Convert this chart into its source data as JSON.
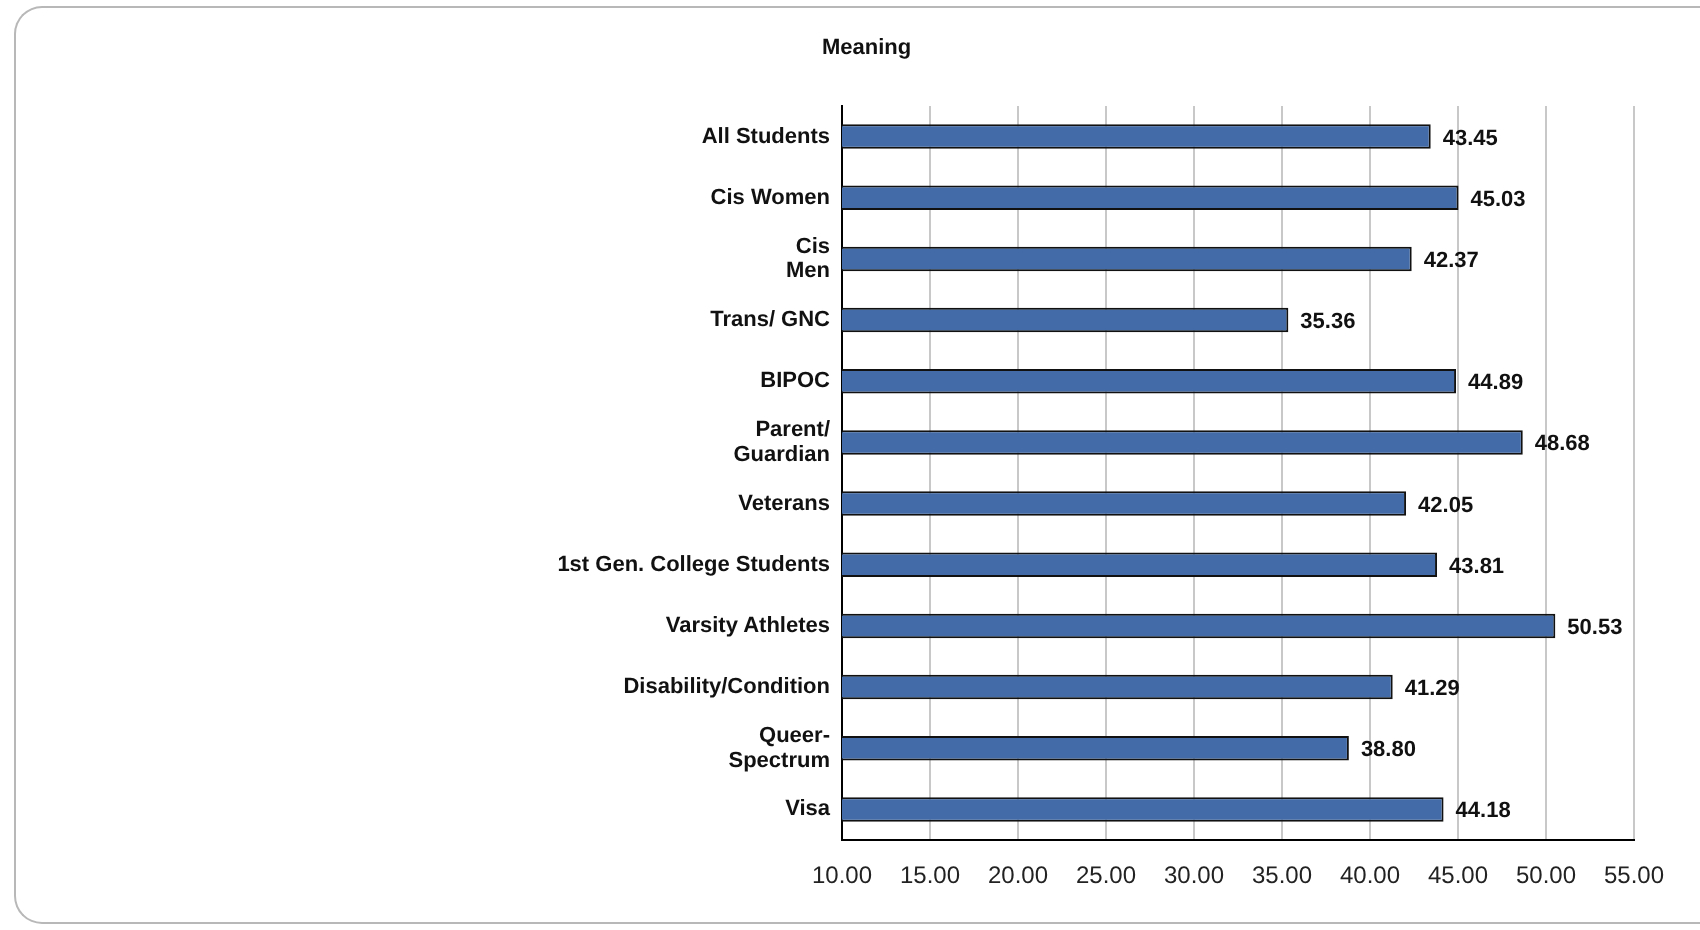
{
  "chart_data": {
    "type": "bar",
    "orientation": "horizontal",
    "title": "Meaning",
    "categories": [
      "All Students",
      "Cis Women",
      "Cis\nMen",
      "Trans/ GNC",
      "BIPOC",
      "Parent/\nGuardian",
      "Veterans",
      "1st Gen. College Students",
      "Varsity Athletes",
      "Disability/Condition",
      "Queer-\nSpectrum",
      "Visa"
    ],
    "values": [
      43.45,
      45.03,
      42.37,
      35.36,
      44.89,
      48.68,
      42.05,
      43.81,
      50.53,
      41.29,
      38.8,
      44.18
    ],
    "value_labels": [
      "43.45",
      "45.03",
      "42.37",
      "35.36",
      "44.89",
      "48.68",
      "42.05",
      "43.81",
      "50.53",
      "41.29",
      "38.80",
      "44.18"
    ],
    "color": "#426ba8",
    "xlim": [
      10,
      55
    ],
    "xticks": [
      {
        "value": 10,
        "label": "10.00"
      },
      {
        "value": 15,
        "label": "15.00"
      },
      {
        "value": 20,
        "label": "20.00"
      },
      {
        "value": 25,
        "label": "25.00"
      },
      {
        "value": 30,
        "label": "30.00"
      },
      {
        "value": 35,
        "label": "35.00"
      },
      {
        "value": 40,
        "label": "40.00"
      },
      {
        "value": 45,
        "label": "45.00"
      },
      {
        "value": 50,
        "label": "50.00"
      },
      {
        "value": 55,
        "label": "55.00"
      }
    ],
    "grid": "x"
  }
}
